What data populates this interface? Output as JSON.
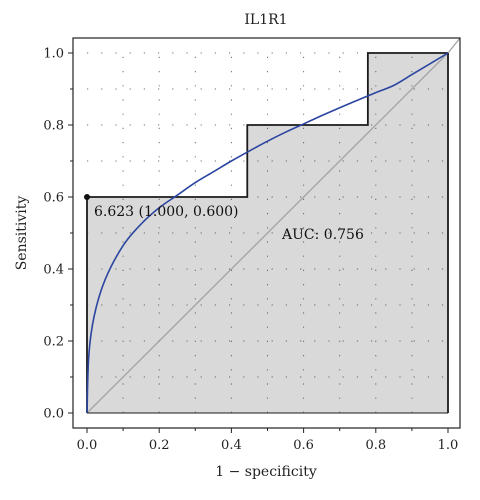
{
  "chart_data": {
    "type": "line",
    "title": "IL1R1",
    "xlabel": "1 − specificity",
    "ylabel": "Sensitivity",
    "xlim": [
      0,
      1
    ],
    "ylim": [
      0,
      1
    ],
    "x_ticks": [
      0.0,
      0.2,
      0.4,
      0.6,
      0.8,
      1.0
    ],
    "y_ticks": [
      0.0,
      0.2,
      0.4,
      0.6,
      0.8,
      1.0
    ],
    "x_tick_labels": [
      "0.0",
      "0.2",
      "0.4",
      "0.6",
      "0.8",
      "1.0"
    ],
    "y_tick_labels": [
      "0.0",
      "0.2",
      "0.4",
      "0.6",
      "0.8",
      "1.0"
    ],
    "grid": "dotted",
    "series": [
      {
        "kind": "empirical-step",
        "color": "#1a1a1a",
        "fill": "#d9d9d9",
        "x": [
          0.0,
          0.0,
          0.444,
          0.444,
          0.778,
          0.778,
          1.0
        ],
        "y": [
          0.0,
          0.6,
          0.6,
          0.8,
          0.8,
          1.0,
          1.0
        ]
      },
      {
        "kind": "smooth",
        "color": "#2b45a0",
        "x": [
          0.0,
          0.005,
          0.02,
          0.05,
          0.1,
          0.15,
          0.2,
          0.25,
          0.3,
          0.35,
          0.4,
          0.45,
          0.5,
          0.55,
          0.6,
          0.65,
          0.7,
          0.75,
          0.8,
          0.85,
          0.9,
          0.95,
          1.0
        ],
        "y": [
          0.0,
          0.16,
          0.27,
          0.37,
          0.465,
          0.525,
          0.57,
          0.605,
          0.64,
          0.67,
          0.7,
          0.728,
          0.755,
          0.78,
          0.803,
          0.826,
          0.848,
          0.869,
          0.89,
          0.91,
          0.94,
          0.97,
          1.0
        ]
      },
      {
        "kind": "reference",
        "color": "#a6a6a6",
        "x": [
          0,
          1
        ],
        "y": [
          0,
          1
        ]
      }
    ],
    "cutoff_point": {
      "x": 0.0,
      "y": 0.6,
      "label": "6.623 (1.000, 0.600)"
    },
    "auc_label": "AUC: 0.756"
  }
}
